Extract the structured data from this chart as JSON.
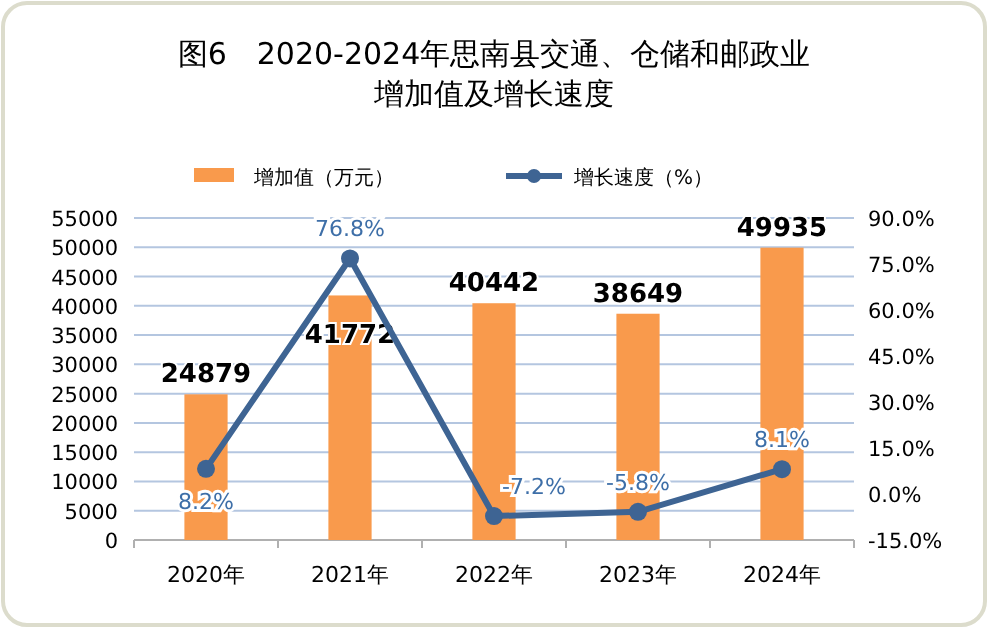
{
  "chart_data": {
    "type": "bar",
    "title": "图6　2020-2024年思南县交通、仓储和邮政业",
    "subtitle": "增加值及增长速度",
    "categories": [
      "2020年",
      "2021年",
      "2022年",
      "2023年",
      "2024年"
    ],
    "series": [
      {
        "name": "增加值（万元）",
        "color": "#f99a4c",
        "values": [
          24879,
          41772,
          40442,
          38649,
          49935
        ]
      },
      {
        "name": "增长速度（%）",
        "type": "line",
        "axis": "y2",
        "color": "#3e6493",
        "values": [
          8.2,
          76.8,
          -7.2,
          -5.8,
          8.1
        ],
        "value_labels": [
          "8.2%",
          "76.8%",
          "-7.2%",
          "-5.8%",
          "8.1%"
        ]
      }
    ],
    "ylim": [
      0,
      55000
    ],
    "yticks": [
      0,
      5000,
      10000,
      15000,
      20000,
      25000,
      30000,
      35000,
      40000,
      45000,
      50000,
      55000
    ],
    "y2lim": [
      -15,
      90
    ],
    "y2ticks": [
      {
        "value": -15,
        "label": "-15.0%"
      },
      {
        "value": 0,
        "label": "0.0%"
      },
      {
        "value": 15,
        "label": "15.0%"
      },
      {
        "value": 30,
        "label": "30.0%"
      },
      {
        "value": 45,
        "label": "45.0%"
      },
      {
        "value": 60,
        "label": "60.0%"
      },
      {
        "value": 75,
        "label": "75.0%"
      },
      {
        "value": 90,
        "label": "90.0%"
      }
    ],
    "grid": "y",
    "legend": "top",
    "marker": "circle",
    "data_labels": true
  }
}
